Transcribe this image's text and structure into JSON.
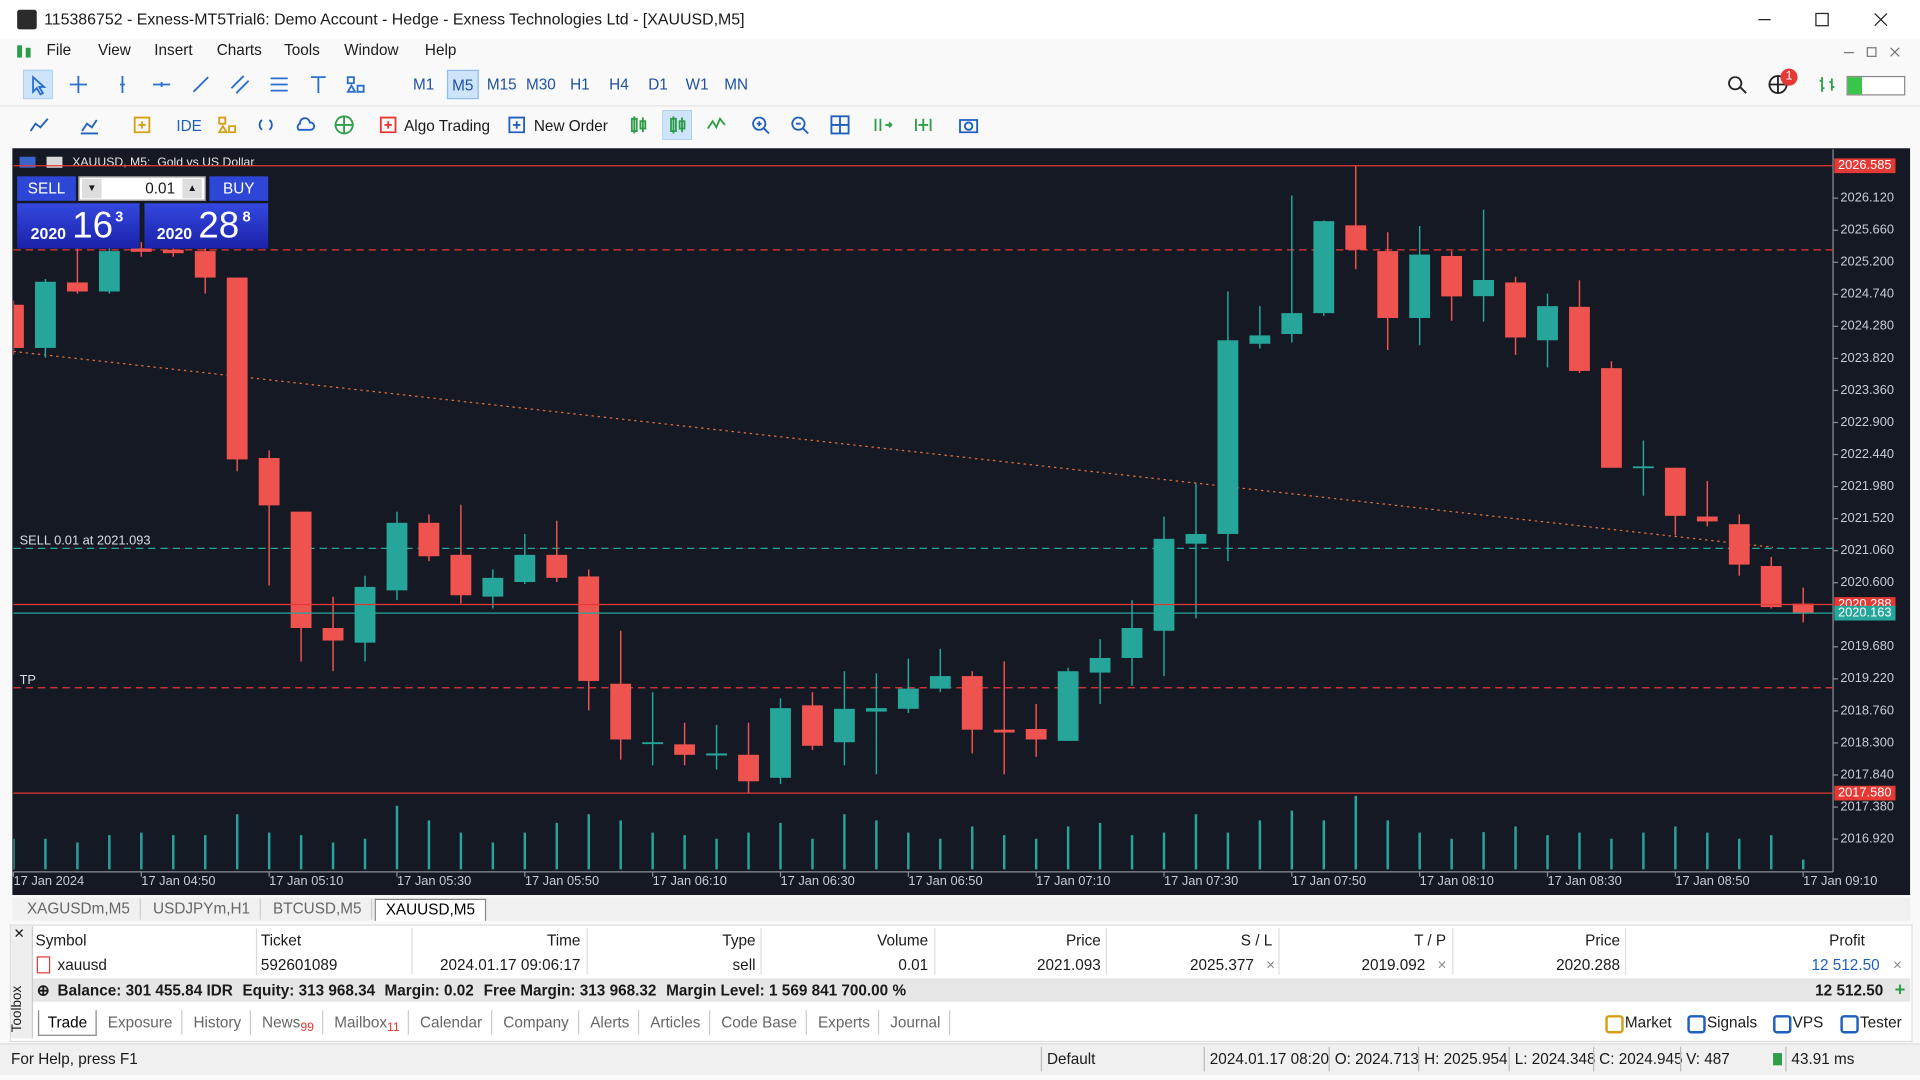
{
  "window": {
    "title": "115386752 - Exness-MT5Trial6: Demo Account - Hedge - Exness Technologies Ltd - [XAUUSD,M5]"
  },
  "menu": [
    "File",
    "View",
    "Insert",
    "Charts",
    "Tools",
    "Window",
    "Help"
  ],
  "toolbar": {
    "timeframes": [
      "M1",
      "M5",
      "M15",
      "M30",
      "H1",
      "H4",
      "D1",
      "W1",
      "MN"
    ],
    "active_timeframe": 1,
    "ide": "IDE",
    "algo_trading": "Algo Trading",
    "new_order": "New Order",
    "notifications": 1
  },
  "chart": {
    "type": "candlestick",
    "title": "XAUUSD, M5:  Gold vs US Dollar",
    "bull_color": "#26a69a",
    "bear_color": "#ef5350",
    "volume_color": "#26a69a",
    "background": "#151924",
    "open": [
      2024.59,
      2023.97,
      2024.91,
      2024.78,
      2025.4,
      2025.38,
      2025.36,
      2024.98,
      2022.39,
      2021.62,
      2019.95,
      2019.74,
      2020.49,
      2021.46,
      2021.0,
      2020.4,
      2020.61,
      2021.0,
      2020.69,
      2019.15,
      2018.29,
      2018.28,
      2018.12,
      2018.13,
      2017.8,
      2018.84,
      2018.31,
      2018.75,
      2018.79,
      2019.08,
      2019.26,
      2018.49,
      2018.5,
      2018.33,
      2019.31,
      2019.52,
      2019.91,
      2021.16,
      2021.3,
      2024.03,
      2024.17,
      2024.47,
      2025.73,
      2025.36,
      2024.4,
      2025.29,
      2024.713,
      2024.91,
      2024.08,
      2024.56,
      2023.68,
      2022.25,
      2022.25,
      2021.55,
      2021.44,
      2020.84,
      2020.3
    ],
    "high": [
      2024.65,
      2024.96,
      2025.45,
      2025.54,
      2025.49,
      2025.45,
      2025.45,
      2024.98,
      2022.5,
      2021.62,
      2020.4,
      2020.7,
      2021.62,
      2021.58,
      2021.72,
      2020.79,
      2021.3,
      2021.49,
      2020.79,
      2019.91,
      2019.03,
      2018.59,
      2018.56,
      2018.59,
      2018.94,
      2019.03,
      2019.33,
      2019.3,
      2019.51,
      2019.65,
      2019.33,
      2019.47,
      2018.86,
      2019.38,
      2019.79,
      2020.35,
      2021.55,
      2022.02,
      2024.78,
      2024.57,
      2026.16,
      2025.8,
      2026.585,
      2025.63,
      2025.72,
      2025.36,
      2025.954,
      2024.99,
      2024.75,
      2024.94,
      2023.78,
      2022.64,
      2022.25,
      2022.06,
      2021.58,
      2020.97,
      2020.53
    ],
    "low": [
      2023.87,
      2023.83,
      2024.75,
      2024.75,
      2025.28,
      2025.28,
      2024.75,
      2022.2,
      2020.56,
      2019.47,
      2019.33,
      2019.47,
      2020.35,
      2020.91,
      2020.3,
      2020.23,
      2020.58,
      2020.61,
      2018.77,
      2018.06,
      2017.98,
      2017.98,
      2017.92,
      2017.58,
      2017.71,
      2018.2,
      2017.98,
      2017.85,
      2018.73,
      2019.03,
      2018.15,
      2017.85,
      2018.1,
      2018.33,
      2018.86,
      2019.12,
      2019.26,
      2020.09,
      2020.91,
      2023.96,
      2024.05,
      2024.43,
      2025.1,
      2023.94,
      2024.01,
      2024.36,
      2024.348,
      2023.87,
      2023.69,
      2023.61,
      2022.25,
      2021.85,
      2021.28,
      2021.41,
      2020.7,
      2020.23,
      2020.03
    ],
    "close": [
      2023.97,
      2024.92,
      2024.78,
      2025.36,
      2025.35,
      2025.33,
      2024.98,
      2022.37,
      2021.71,
      2019.95,
      2019.77,
      2020.54,
      2021.46,
      2020.98,
      2020.42,
      2020.67,
      2021.0,
      2020.67,
      2019.19,
      2018.35,
      2018.31,
      2018.13,
      2018.15,
      2017.75,
      2018.8,
      2018.26,
      2018.79,
      2018.8,
      2019.08,
      2019.26,
      2018.49,
      2018.45,
      2018.35,
      2019.33,
      2019.52,
      2019.95,
      2021.23,
      2021.3,
      2024.08,
      2024.15,
      2024.47,
      2025.79,
      2025.38,
      2024.4,
      2025.31,
      2024.71,
      2024.945,
      2024.12,
      2024.57,
      2023.64,
      2022.25,
      2022.27,
      2021.56,
      2021.48,
      2020.86,
      2020.25,
      2020.163
    ],
    "volume": [
      400,
      400,
      352,
      448,
      480,
      448,
      448,
      720,
      480,
      448,
      352,
      400,
      832,
      640,
      480,
      352,
      480,
      608,
      720,
      640,
      480,
      448,
      400,
      480,
      608,
      400,
      720,
      640,
      480,
      400,
      560,
      448,
      400,
      560,
      608,
      448,
      480,
      720,
      480,
      640,
      768,
      640,
      960,
      640,
      480,
      400,
      487,
      560,
      448,
      480,
      400,
      480,
      560,
      480,
      400,
      448,
      128
    ],
    "xticks": [
      {
        "value": 0,
        "label": "17 Jan 2024"
      },
      {
        "value": 4,
        "label": "17 Jan 04:50"
      },
      {
        "value": 8,
        "label": "17 Jan 05:10"
      },
      {
        "value": 12,
        "label": "17 Jan 05:30"
      },
      {
        "value": 16,
        "label": "17 Jan 05:50"
      },
      {
        "value": 20,
        "label": "17 Jan 06:10"
      },
      {
        "value": 24,
        "label": "17 Jan 06:30"
      },
      {
        "value": 28,
        "label": "17 Jan 06:50"
      },
      {
        "value": 32,
        "label": "17 Jan 07:10"
      },
      {
        "value": 36,
        "label": "17 Jan 07:30"
      },
      {
        "value": 40,
        "label": "17 Jan 07:50"
      },
      {
        "value": 44,
        "label": "17 Jan 08:10"
      },
      {
        "value": 48,
        "label": "17 Jan 08:30"
      },
      {
        "value": 52,
        "label": "17 Jan 08:50"
      },
      {
        "value": 56,
        "label": "17 Jan 09:10"
      }
    ],
    "ylim": [
      2016.45,
      2026.82
    ],
    "yticks": [
      {
        "value": 2026.12,
        "label": "2026.120"
      },
      {
        "value": 2025.66,
        "label": "2025.660"
      },
      {
        "value": 2025.2,
        "label": "2025.200"
      },
      {
        "value": 2024.74,
        "label": "2024.740"
      },
      {
        "value": 2024.28,
        "label": "2024.280"
      },
      {
        "value": 2023.82,
        "label": "2023.820"
      },
      {
        "value": 2023.36,
        "label": "2023.360"
      },
      {
        "value": 2022.9,
        "label": "2022.900"
      },
      {
        "value": 2022.44,
        "label": "2022.440"
      },
      {
        "value": 2021.98,
        "label": "2021.980"
      },
      {
        "value": 2021.52,
        "label": "2021.520"
      },
      {
        "value": 2021.06,
        "label": "2021.060"
      },
      {
        "value": 2020.6,
        "label": "2020.600"
      },
      {
        "value": 2019.68,
        "label": "2019.680"
      },
      {
        "value": 2019.22,
        "label": "2019.220"
      },
      {
        "value": 2018.76,
        "label": "2018.760"
      },
      {
        "value": 2018.3,
        "label": "2018.300"
      },
      {
        "value": 2017.84,
        "label": "2017.840"
      },
      {
        "value": 2017.38,
        "label": "2017.380"
      },
      {
        "value": 2016.92,
        "label": "2016.920"
      }
    ],
    "levels": [
      {
        "value": 2026.585,
        "label": "2026.585",
        "color": "#e53935"
      },
      {
        "value": 2017.58,
        "label": "2017.580",
        "color": "#e53935"
      },
      {
        "value": 2020.288,
        "label": "2020.288",
        "color": "#e53935"
      },
      {
        "value": 2020.163,
        "label": "2020.163",
        "color": "#26a69a"
      }
    ],
    "orders": [
      {
        "value": 2021.093,
        "label": "SELL 0.01 at 2021.093",
        "color": "#26a69a"
      },
      {
        "value": 2025.377,
        "color": "#e53935"
      },
      {
        "value": 2019.092,
        "label": "TP",
        "color": "#e53935"
      }
    ],
    "one_click": {
      "sell": "SELL",
      "buy": "BUY",
      "volume": 0.01,
      "bid": [
        "2020",
        "16",
        "3"
      ],
      "ask": [
        "2020",
        "28",
        "8"
      ]
    }
  },
  "symbol_tabs": {
    "tabs": [
      "XAGUSDm,M5",
      "USDJPYm,H1",
      "BTCUSD,M5",
      "XAUUSD,M5"
    ],
    "active": 3
  },
  "trade": {
    "headers": [
      "Symbol",
      "Ticket",
      "Time",
      "Type",
      "Volume",
      "Price",
      "S / L",
      "T / P",
      "Price",
      "Profit"
    ],
    "rows": [
      [
        "xauusd",
        "592601089",
        "2024.01.17 09:06:17",
        "sell",
        "0.01",
        "2021.093",
        "2025.377",
        "2019.092",
        "2020.288",
        "12 512.50"
      ]
    ],
    "summary": [
      "Balance: 301 455.84 IDR",
      "Equity: 313 968.34",
      "Margin: 0.02",
      "Free Margin: 313 968.32",
      "Margin Level: 1 569 841 700.00 %"
    ],
    "total": "12 512.50"
  },
  "toolbox": {
    "label": "Toolbox",
    "tabs": [
      {
        "label": "Trade"
      },
      {
        "label": "Exposure"
      },
      {
        "label": "History"
      },
      {
        "label": "News",
        "badge": "99"
      },
      {
        "label": "Mailbox",
        "badge": "11"
      },
      {
        "label": "Calendar"
      },
      {
        "label": "Company"
      },
      {
        "label": "Alerts"
      },
      {
        "label": "Articles"
      },
      {
        "label": "Code Base"
      },
      {
        "label": "Experts"
      },
      {
        "label": "Journal"
      }
    ],
    "active": 0,
    "right": [
      "Market",
      "Signals",
      "VPS",
      "Tester"
    ]
  },
  "status": {
    "help": "For Help, press F1",
    "profile": "Default",
    "time": "2024.01.17 08:20",
    "open": "O: 2024.713",
    "high": "H: 2025.954",
    "low": "L: 2024.348",
    "close": "C: 2024.945",
    "volume": "V: 487",
    "ping": "43.91 ms"
  }
}
